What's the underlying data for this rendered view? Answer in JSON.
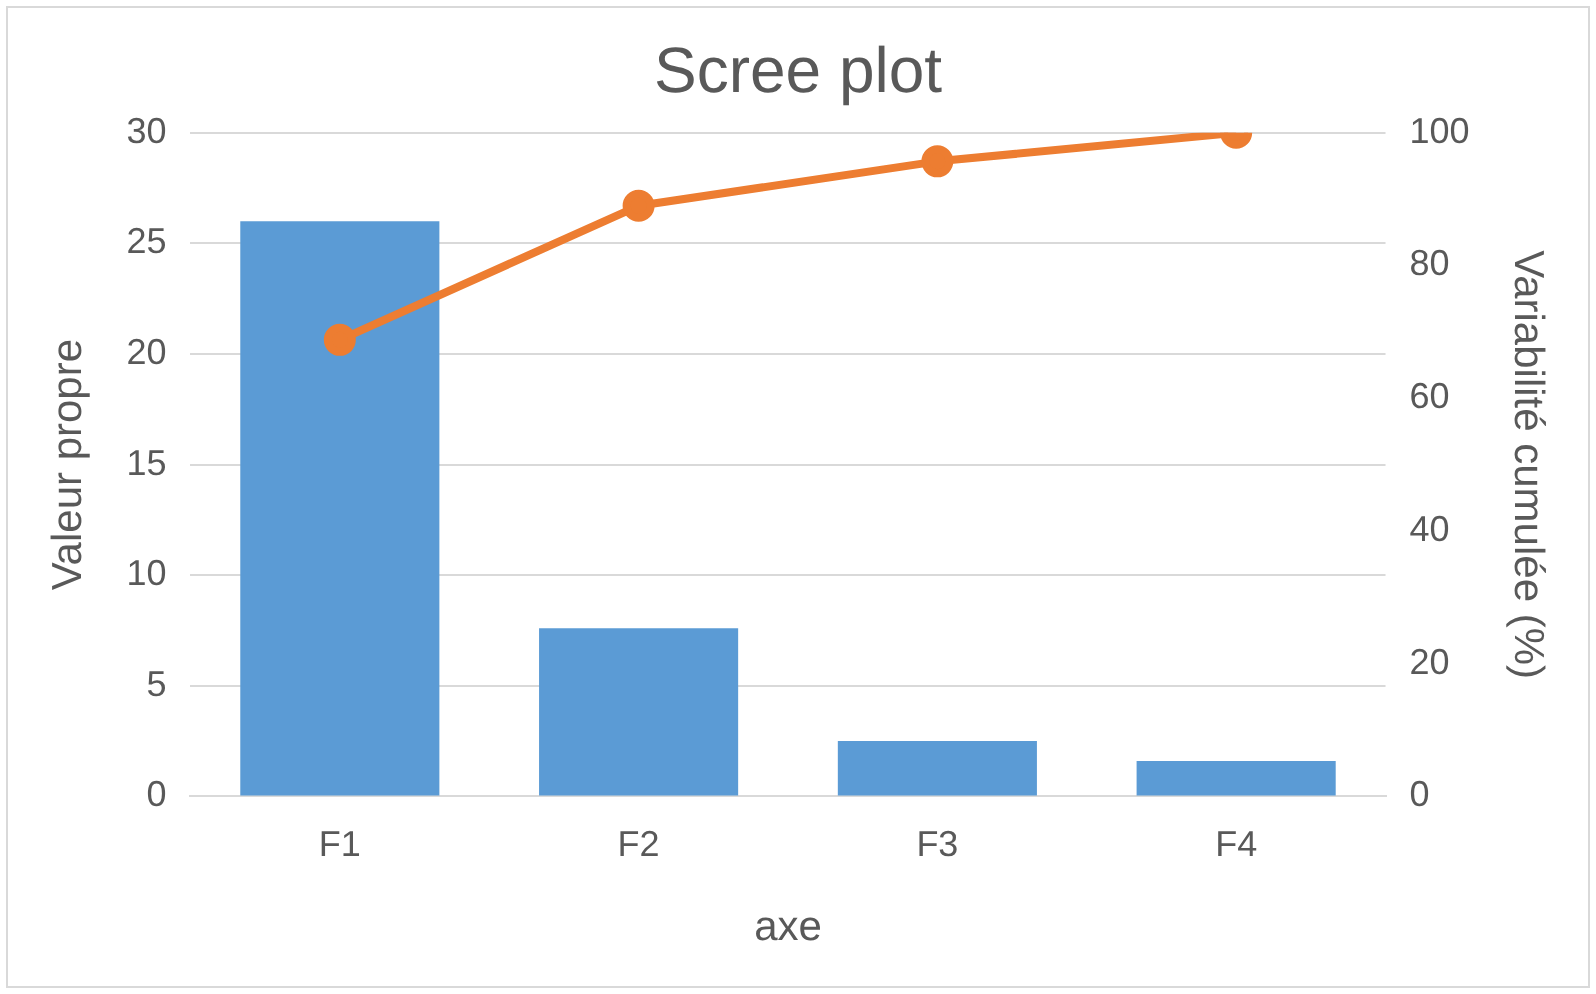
{
  "chart_data": {
    "type": "bar",
    "title": "Scree plot",
    "xlabel": "axe",
    "ylabel": "Valeur propre",
    "y2label": "Variabilité cumulée (%)",
    "categories": [
      "F1",
      "F2",
      "F3",
      "F4"
    ],
    "series": [
      {
        "color": "#5b9bd5",
        "values": [
          26.0,
          7.6,
          2.5,
          1.6
        ]
      },
      {
        "type": "line",
        "axis": "y2",
        "color": "#ed7d31",
        "marker": "circle",
        "values": [
          68.8,
          89.0,
          95.7,
          100
        ]
      }
    ],
    "ylim": [
      0,
      30
    ],
    "yticks": [
      0,
      5,
      10,
      15,
      20,
      25,
      30
    ],
    "y2lim": [
      0,
      100
    ],
    "y2ticks": [
      0,
      20,
      40,
      60,
      80,
      100
    ],
    "grid": "y",
    "legend": false
  }
}
